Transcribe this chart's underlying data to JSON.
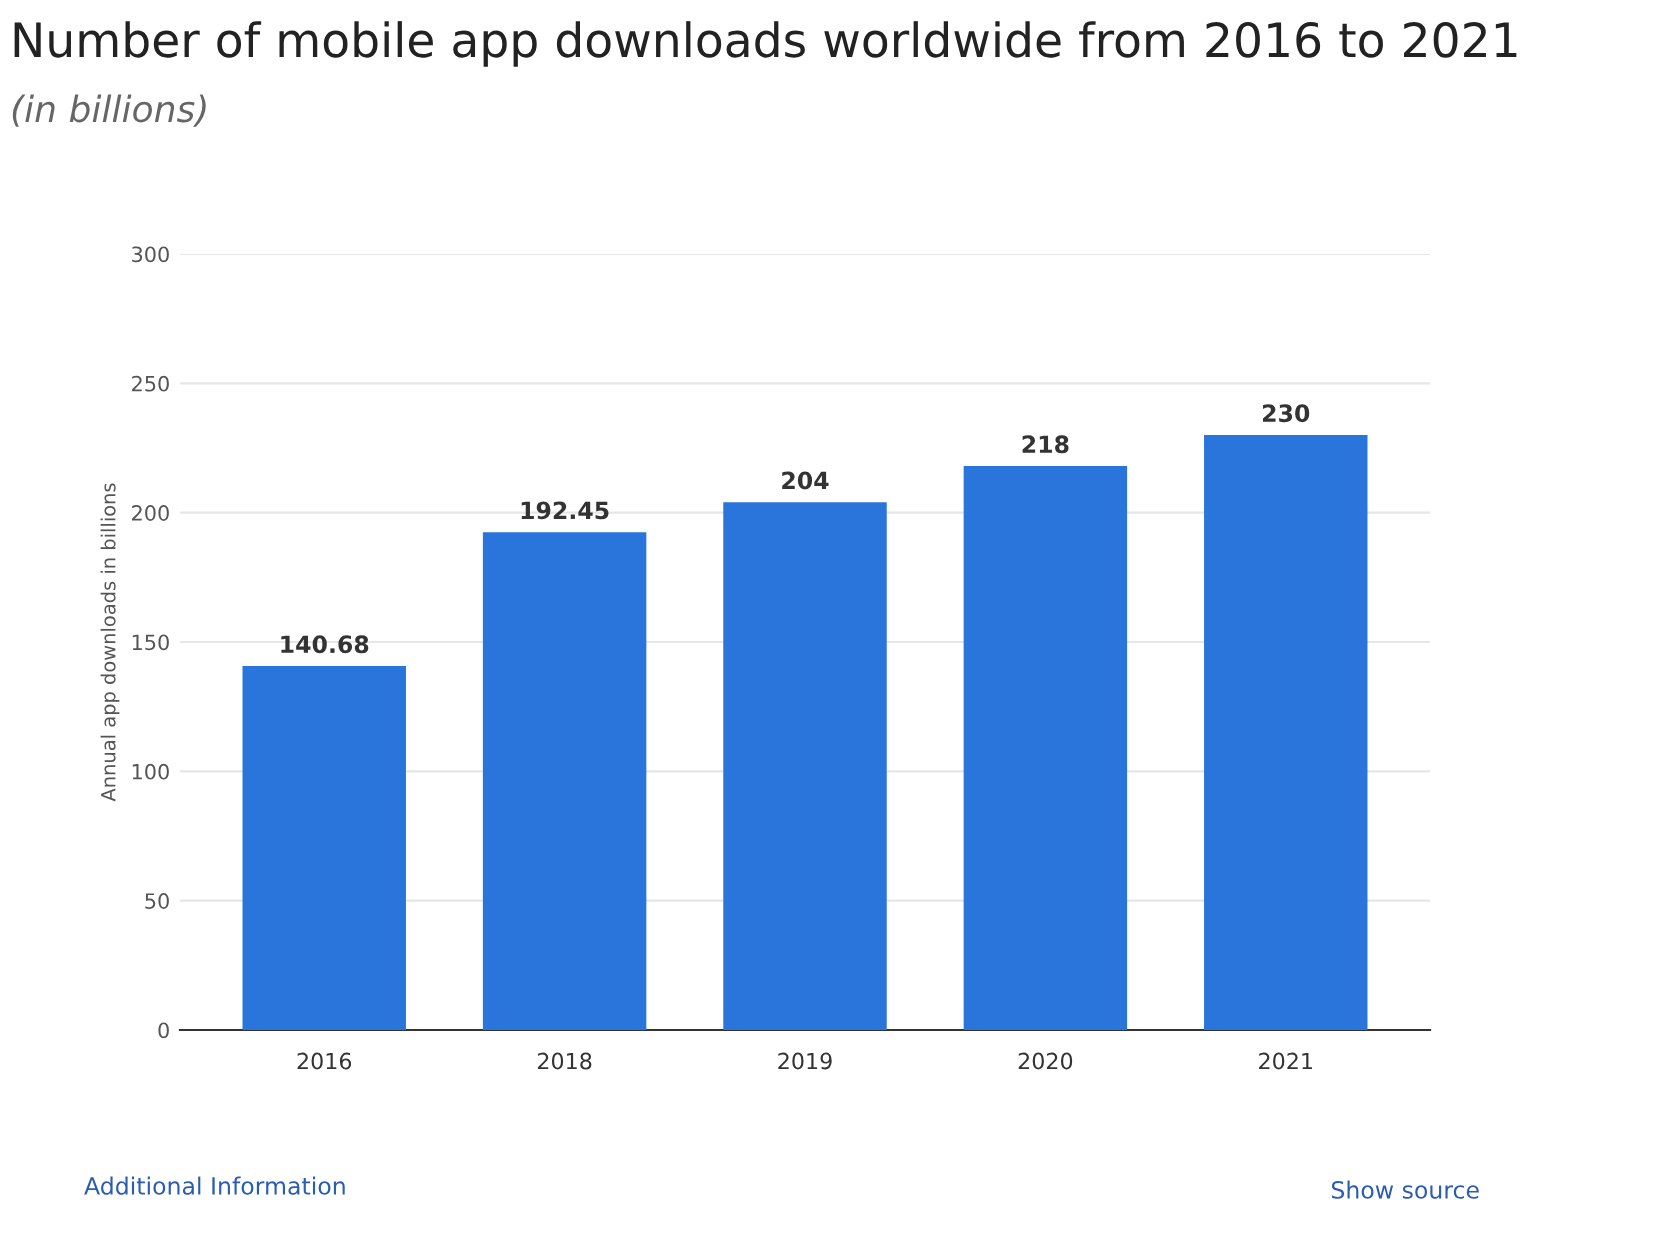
{
  "chart_data": {
    "type": "bar",
    "title": "Number of mobile app downloads worldwide from 2016 to 2021",
    "subtitle": "(in billions)",
    "ylabel": "Annual app downloads in billions",
    "categories": [
      "2016",
      "2018",
      "2019",
      "2020",
      "2021"
    ],
    "values": [
      140.68,
      192.45,
      204,
      218,
      230
    ],
    "color": "#2a75dc",
    "ylim": [
      0,
      300
    ],
    "yticks": [
      0,
      50,
      100,
      150,
      200,
      250,
      300
    ],
    "grid": "y",
    "data_labels": true,
    "annotations": [
      "Additional Information",
      "Show source"
    ]
  }
}
